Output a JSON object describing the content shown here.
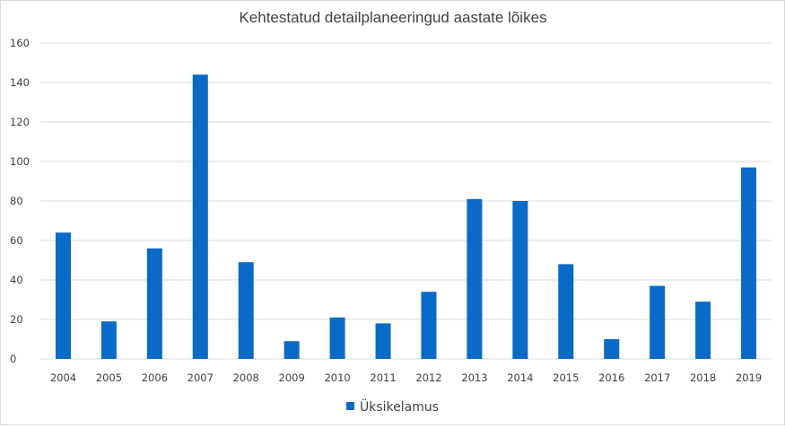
{
  "chart_data": {
    "type": "bar",
    "title": "Kehtestatud detailplaneeringud aastate lõikes",
    "xlabel": "",
    "ylabel": "",
    "categories": [
      "2004",
      "2005",
      "2006",
      "2007",
      "2008",
      "2009",
      "2010",
      "2011",
      "2012",
      "2013",
      "2014",
      "2015",
      "2016",
      "2017",
      "2018",
      "2019"
    ],
    "series": [
      {
        "name": "Üksikelamus",
        "color": "#0a6ac7",
        "values": [
          64,
          19,
          56,
          144,
          49,
          9,
          21,
          18,
          34,
          81,
          80,
          48,
          10,
          37,
          29,
          97
        ]
      }
    ],
    "ylim": [
      0,
      160
    ],
    "yticks": [
      0,
      20,
      40,
      60,
      80,
      100,
      120,
      140,
      160
    ],
    "grid": true,
    "legend_position": "bottom"
  }
}
